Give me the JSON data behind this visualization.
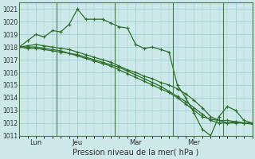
{
  "title": "",
  "xlabel": "Pression niveau de la mer( hPa )",
  "bg_color": "#cce8e8",
  "grid_color": "#99cccc",
  "line_color": "#2d6e2d",
  "ylim": [
    1011,
    1021.5
  ],
  "yticks": [
    1011,
    1012,
    1013,
    1014,
    1015,
    1016,
    1017,
    1018,
    1019,
    1020,
    1021
  ],
  "xlim": [
    0,
    28
  ],
  "x_tick_positions": [
    2,
    7,
    14,
    21,
    26
  ],
  "x_tick_labels": [
    "Lun",
    "Jeu",
    "Mar",
    "Mer",
    ""
  ],
  "vlines": [
    4.5,
    11.5,
    18.5,
    24.5
  ],
  "series1": [
    1018.0,
    1018.5,
    1019.0,
    1018.8,
    1019.3,
    1019.2,
    1019.8,
    1021.0,
    1020.2,
    1020.2,
    1020.2,
    1019.9,
    1019.6,
    1019.5,
    1018.2,
    1017.9,
    1018.0,
    1017.8,
    1017.6,
    1015.0,
    1014.0,
    1012.8,
    1011.5,
    1011.0,
    1012.5,
    1013.3,
    1013.0,
    1012.2,
    1012.0
  ],
  "series2": [
    1018.0,
    1018.0,
    1018.0,
    1017.9,
    1017.8,
    1017.7,
    1017.5,
    1017.3,
    1017.1,
    1016.9,
    1016.7,
    1016.5,
    1016.2,
    1015.9,
    1015.6,
    1015.3,
    1015.0,
    1014.7,
    1014.4,
    1014.0,
    1013.5,
    1013.0,
    1012.5,
    1012.3,
    1012.2,
    1012.2,
    1012.1,
    1012.0,
    1012.0
  ],
  "series3": [
    1018.0,
    1017.9,
    1017.9,
    1017.8,
    1017.7,
    1017.6,
    1017.5,
    1017.4,
    1017.2,
    1017.0,
    1016.8,
    1016.6,
    1016.4,
    1016.1,
    1015.8,
    1015.5,
    1015.2,
    1014.9,
    1014.5,
    1014.1,
    1013.7,
    1013.2,
    1012.7,
    1012.2,
    1012.0,
    1012.0,
    1012.1,
    1012.0,
    1011.9
  ],
  "series4": [
    1018.0,
    1018.1,
    1018.2,
    1018.1,
    1018.0,
    1017.9,
    1017.8,
    1017.6,
    1017.4,
    1017.2,
    1017.0,
    1016.8,
    1016.5,
    1016.2,
    1016.0,
    1015.7,
    1015.5,
    1015.2,
    1015.0,
    1014.7,
    1014.3,
    1013.8,
    1013.2,
    1012.5,
    1012.2,
    1012.0,
    1012.0,
    1012.0,
    1012.0
  ]
}
